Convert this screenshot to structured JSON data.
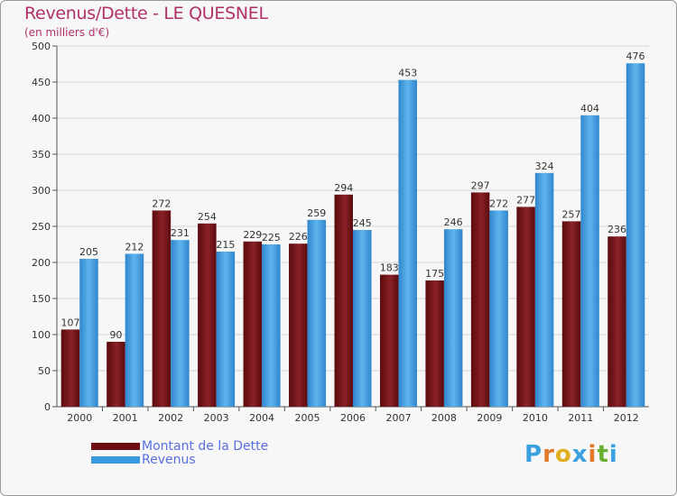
{
  "header": {
    "title": "Revenus/Dette - LE QUESNEL",
    "subtitle": "(en milliers d'€)"
  },
  "legend": {
    "items": [
      {
        "label": "Montant de la Dette",
        "color": "#6e0f14"
      },
      {
        "label": "Revenus",
        "color": "#3a9ae0"
      }
    ]
  },
  "logo": {
    "letters": [
      {
        "ch": "P",
        "color": "#3aa0e0"
      },
      {
        "ch": "r",
        "color": "#e07a2a"
      },
      {
        "ch": "o",
        "color": "#e0b020"
      },
      {
        "ch": "x",
        "color": "#3aa0e0"
      },
      {
        "ch": "i",
        "color": "#e07a2a"
      },
      {
        "ch": "t",
        "color": "#6ab030"
      },
      {
        "ch": "i",
        "color": "#3aa0e0"
      }
    ]
  },
  "chart_data": {
    "type": "bar",
    "categories": [
      "2000",
      "2001",
      "2002",
      "2003",
      "2004",
      "2005",
      "2006",
      "2007",
      "2008",
      "2009",
      "2010",
      "2011",
      "2012"
    ],
    "series": [
      {
        "name": "Montant de la Dette",
        "color": "#6e0f14",
        "values": [
          107,
          90,
          272,
          254,
          229,
          226,
          294,
          183,
          175,
          297,
          277,
          257,
          236
        ]
      },
      {
        "name": "Revenus",
        "color": "#3a9ae0",
        "values": [
          205,
          212,
          231,
          215,
          225,
          259,
          245,
          453,
          246,
          272,
          324,
          404,
          476
        ]
      }
    ],
    "ylim": [
      0,
      500
    ],
    "yticks": [
      0,
      50,
      100,
      150,
      200,
      250,
      300,
      350,
      400,
      450,
      500
    ],
    "grid": true,
    "legend_position": "bottom-left"
  }
}
